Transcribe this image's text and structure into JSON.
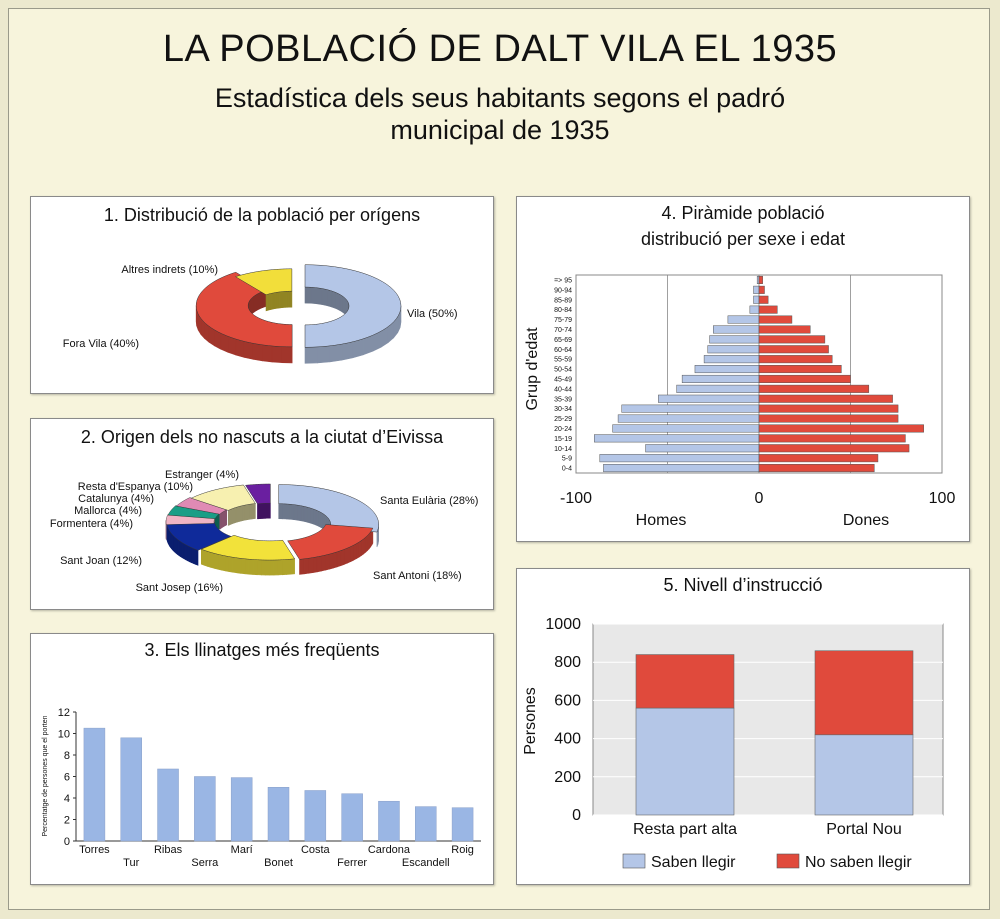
{
  "title": "LA POBLACIÓ DE DALT VILA EL 1935",
  "subtitle_line1": "Estadística dels seus habitants segons el padró",
  "subtitle_line2": "municipal de 1935",
  "chart_data": [
    {
      "type": "pie",
      "title": "1. Distribució de la població per orígens",
      "slices": [
        {
          "label": "Vila",
          "value": 50,
          "display": "Vila  (50%)",
          "color": "#b4c6e7"
        },
        {
          "label": "Fora Vila",
          "value": 40,
          "display": "Fora Vila  (40%)",
          "color": "#e04a3c"
        },
        {
          "label": "Altres indrets",
          "value": 10,
          "display": "Altres indrets  (10%)",
          "color": "#f2de3a"
        }
      ]
    },
    {
      "type": "pie",
      "title": "2. Origen dels no nascuts a la ciutat d’Eivissa",
      "slices": [
        {
          "label": "Santa Eulària",
          "value": 28,
          "display": "Santa Eulària  (28%)",
          "color": "#b4c6e7"
        },
        {
          "label": "Sant Antoni",
          "value": 18,
          "display": "Sant Antoni  (18%)",
          "color": "#e04a3c"
        },
        {
          "label": "Sant Josep",
          "value": 16,
          "display": "Sant Josep  (16%)",
          "color": "#f2e23a"
        },
        {
          "label": "Sant Joan",
          "value": 12,
          "display": "Sant Joan  (12%)",
          "color": "#0f2a9a"
        },
        {
          "label": "Formentera",
          "value": 4,
          "display": "Formentera  (4%)",
          "color": "#f0b4c4"
        },
        {
          "label": "Mallorca",
          "value": 4,
          "display": "Mallorca  (4%)",
          "color": "#1a9e86"
        },
        {
          "label": "Catalunya",
          "value": 4,
          "display": "Catalunya  (4%)",
          "color": "#e08ab4"
        },
        {
          "label": "Resta d'Espanya",
          "value": 10,
          "display": "Resta d'Espanya  (10%)",
          "color": "#f7f0b0"
        },
        {
          "label": "Estranger",
          "value": 4,
          "display": "Estranger  (4%)",
          "color": "#6a1fa0"
        }
      ]
    },
    {
      "type": "bar",
      "title": "3. Els llinatges més freqüents",
      "ylabel": "Percentatge de persones que el porten",
      "ylim": [
        0,
        12
      ],
      "yticks": [
        "0",
        "2",
        "4",
        "6",
        "8",
        "10",
        "12"
      ],
      "categories": [
        "Torres",
        "Tur",
        "Ribas",
        "Serra",
        "Marí",
        "Bonet",
        "Costa",
        "Ferrer",
        "Cardona",
        "Escandell",
        "Roig"
      ],
      "values": [
        10.5,
        9.6,
        6.7,
        6.0,
        5.9,
        5.0,
        4.7,
        4.4,
        3.7,
        3.2,
        3.1
      ],
      "color": "#9ab6e4"
    },
    {
      "type": "bar",
      "title_line1": "4. Piràmide població",
      "title_line2": "distribució per sexe i edat",
      "ylabel": "Grup d'edat",
      "xlim": [
        -100,
        100
      ],
      "xticks": [
        "-100",
        "0",
        "100"
      ],
      "xlabel_left": "Homes",
      "xlabel_right": "Dones",
      "categories": [
        "0-4",
        "5-9",
        "10-14",
        "15-19",
        "20-24",
        "25-29",
        "30-34",
        "35-39",
        "40-44",
        "45-49",
        "50-54",
        "55-59",
        "60-64",
        "65-69",
        "70-74",
        "75-79",
        "80-84",
        "85-89",
        "90-94",
        "=> 95"
      ],
      "series": [
        {
          "name": "Homes",
          "values": [
            -85,
            -87,
            -62,
            -90,
            -80,
            -77,
            -75,
            -55,
            -45,
            -42,
            -35,
            -30,
            -28,
            -27,
            -25,
            -17,
            -5,
            -3,
            -3,
            -1
          ],
          "color": "#b4c6e7"
        },
        {
          "name": "Dones",
          "values": [
            63,
            65,
            82,
            80,
            90,
            76,
            76,
            73,
            60,
            50,
            45,
            40,
            38,
            36,
            28,
            18,
            10,
            5,
            3,
            2
          ],
          "color": "#e04a3c"
        }
      ]
    },
    {
      "type": "bar",
      "title": "5. Nivell d’instrucció",
      "ylabel": "Persones",
      "ylim": [
        0,
        1000
      ],
      "yticks": [
        "0",
        "200",
        "400",
        "600",
        "800",
        "1000"
      ],
      "categories": [
        "Resta part alta",
        "Portal Nou"
      ],
      "series": [
        {
          "name": "Saben llegir",
          "values": [
            560,
            420
          ],
          "color": "#b4c6e7"
        },
        {
          "name": "No saben llegir",
          "values": [
            280,
            440
          ],
          "color": "#e04a3c"
        }
      ]
    }
  ]
}
